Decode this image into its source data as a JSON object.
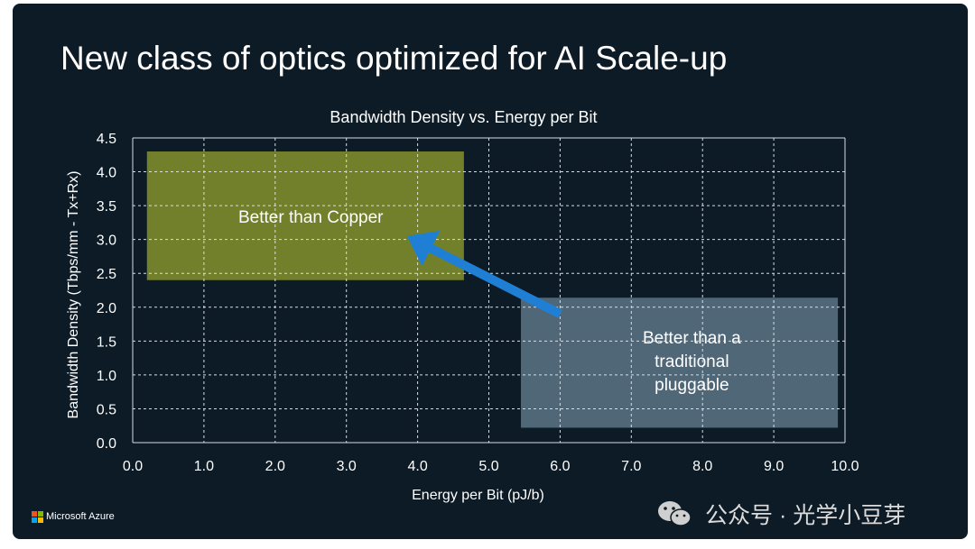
{
  "slide": {
    "title": "New class of optics optimized for AI Scale-up",
    "brand": "Microsoft Azure",
    "watermark": "公众号 · 光学小豆芽",
    "colors": {
      "background": "#0c1b26",
      "copper_region": "#7d8c2e",
      "pluggable_region": "#5d7487",
      "arrow": "#1f7fd4",
      "grid": "#d8dde2"
    }
  },
  "chart_data": {
    "type": "scatter",
    "title": "Bandwidth Density vs. Energy per  Bit",
    "xlabel": "Energy per Bit (pJ/b)",
    "ylabel": "Bandwidth Density (Tbps/mm - Tx+Rx)",
    "xlim": [
      0,
      10
    ],
    "ylim": [
      0,
      4.5
    ],
    "xticks": [
      "0.0",
      "1.0",
      "2.0",
      "3.0",
      "4.0",
      "5.0",
      "6.0",
      "7.0",
      "8.0",
      "9.0",
      "10.0"
    ],
    "yticks": [
      "0.0",
      "0.5",
      "1.0",
      "1.5",
      "2.0",
      "2.5",
      "3.0",
      "3.5",
      "4.0",
      "4.5"
    ],
    "grid": true,
    "regions": [
      {
        "name": "copper",
        "label": [
          "Better than Copper"
        ],
        "x0": 0.2,
        "x1": 4.65,
        "y0": 2.4,
        "y1": 4.3,
        "label_x": 2.5,
        "label_y": 3.33
      },
      {
        "name": "pluggable",
        "label": [
          "Better than a",
          "traditional",
          "pluggable"
        ],
        "x0": 5.45,
        "x1": 9.9,
        "y0": 0.22,
        "y1": 2.14,
        "label_x": 7.85,
        "label_y": 1.2
      }
    ],
    "arrow": {
      "from": [
        6.0,
        1.9
      ],
      "to": [
        3.85,
        3.05
      ]
    }
  }
}
